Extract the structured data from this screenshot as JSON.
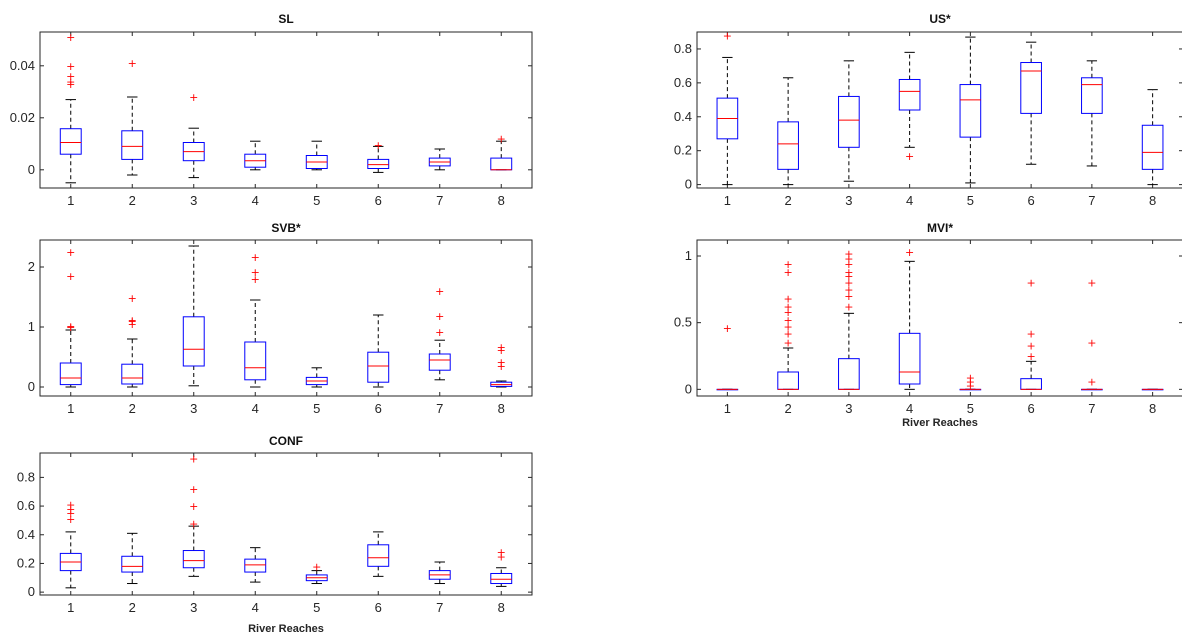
{
  "chart_data": [
    {
      "type": "boxplot",
      "title": "SL",
      "xlabel": "",
      "categories": [
        "1",
        "2",
        "3",
        "4",
        "5",
        "6",
        "7",
        "8"
      ],
      "ylim": [
        -0.007,
        0.053
      ],
      "yticks": [
        0,
        0.02,
        0.04
      ],
      "ytick_labels": [
        "0",
        "0.02",
        "0.04"
      ],
      "boxes": [
        {
          "q1": 0.006,
          "median": 0.0105,
          "q3": 0.0158,
          "whisker_low": -0.005,
          "whisker_high": 0.027,
          "outliers": [
            0.033,
            0.034,
            0.036,
            0.04,
            0.051
          ]
        },
        {
          "q1": 0.004,
          "median": 0.009,
          "q3": 0.015,
          "whisker_low": -0.002,
          "whisker_high": 0.028,
          "outliers": [
            0.041
          ]
        },
        {
          "q1": 0.0035,
          "median": 0.007,
          "q3": 0.0105,
          "whisker_low": -0.003,
          "whisker_high": 0.016,
          "outliers": [
            0.028
          ]
        },
        {
          "q1": 0.001,
          "median": 0.0035,
          "q3": 0.006,
          "whisker_low": 0.0,
          "whisker_high": 0.011,
          "outliers": []
        },
        {
          "q1": 0.0005,
          "median": 0.003,
          "q3": 0.0055,
          "whisker_low": 0.0,
          "whisker_high": 0.011,
          "outliers": []
        },
        {
          "q1": 0.0005,
          "median": 0.002,
          "q3": 0.004,
          "whisker_low": -0.001,
          "whisker_high": 0.009,
          "outliers": [
            0.0095
          ]
        },
        {
          "q1": 0.0015,
          "median": 0.003,
          "q3": 0.0045,
          "whisker_low": 0.0,
          "whisker_high": 0.008,
          "outliers": []
        },
        {
          "q1": 0.0,
          "median": 0.0,
          "q3": 0.0045,
          "whisker_low": 0.0,
          "whisker_high": 0.011,
          "outliers": [
            0.012
          ]
        }
      ]
    },
    {
      "type": "boxplot",
      "title": "US*",
      "xlabel": "",
      "categories": [
        "1",
        "2",
        "3",
        "4",
        "5",
        "6",
        "7",
        "8"
      ],
      "ylim": [
        -0.02,
        0.9
      ],
      "yticks": [
        0,
        0.2,
        0.4,
        0.6,
        0.8
      ],
      "ytick_labels": [
        "0",
        "0.2",
        "0.4",
        "0.6",
        "0.8"
      ],
      "boxes": [
        {
          "q1": 0.27,
          "median": 0.39,
          "q3": 0.51,
          "whisker_low": 0.0,
          "whisker_high": 0.75,
          "outliers": [
            0.88
          ]
        },
        {
          "q1": 0.09,
          "median": 0.24,
          "q3": 0.37,
          "whisker_low": 0.0,
          "whisker_high": 0.63,
          "outliers": []
        },
        {
          "q1": 0.22,
          "median": 0.38,
          "q3": 0.52,
          "whisker_low": 0.02,
          "whisker_high": 0.73,
          "outliers": []
        },
        {
          "q1": 0.44,
          "median": 0.55,
          "q3": 0.62,
          "whisker_low": 0.22,
          "whisker_high": 0.78,
          "outliers": [
            0.17
          ]
        },
        {
          "q1": 0.28,
          "median": 0.5,
          "q3": 0.59,
          "whisker_low": 0.01,
          "whisker_high": 0.87,
          "outliers": []
        },
        {
          "q1": 0.42,
          "median": 0.67,
          "q3": 0.72,
          "whisker_low": 0.12,
          "whisker_high": 0.84,
          "outliers": []
        },
        {
          "q1": 0.42,
          "median": 0.59,
          "q3": 0.63,
          "whisker_low": 0.11,
          "whisker_high": 0.73,
          "outliers": []
        },
        {
          "q1": 0.09,
          "median": 0.19,
          "q3": 0.35,
          "whisker_low": 0.0,
          "whisker_high": 0.56,
          "outliers": []
        }
      ]
    },
    {
      "type": "boxplot",
      "title": "SVB*",
      "xlabel": "",
      "categories": [
        "1",
        "2",
        "3",
        "4",
        "5",
        "6",
        "7",
        "8"
      ],
      "ylim": [
        -0.15,
        2.45
      ],
      "yticks": [
        0,
        1,
        2
      ],
      "ytick_labels": [
        "0",
        "1",
        "2"
      ],
      "boxes": [
        {
          "q1": 0.04,
          "median": 0.15,
          "q3": 0.4,
          "whisker_low": 0.0,
          "whisker_high": 0.95,
          "outliers": [
            1.0,
            1.02,
            1.85,
            2.25
          ]
        },
        {
          "q1": 0.05,
          "median": 0.15,
          "q3": 0.38,
          "whisker_low": 0.0,
          "whisker_high": 0.8,
          "outliers": [
            1.05,
            1.1,
            1.12,
            1.48
          ]
        },
        {
          "q1": 0.35,
          "median": 0.63,
          "q3": 1.17,
          "whisker_low": 0.02,
          "whisker_high": 2.35,
          "outliers": []
        },
        {
          "q1": 0.12,
          "median": 0.32,
          "q3": 0.75,
          "whisker_low": 0.0,
          "whisker_high": 1.45,
          "outliers": [
            1.8,
            1.92,
            2.17
          ]
        },
        {
          "q1": 0.04,
          "median": 0.1,
          "q3": 0.16,
          "whisker_low": 0.0,
          "whisker_high": 0.32,
          "outliers": []
        },
        {
          "q1": 0.08,
          "median": 0.35,
          "q3": 0.58,
          "whisker_low": 0.0,
          "whisker_high": 1.2,
          "outliers": []
        },
        {
          "q1": 0.28,
          "median": 0.45,
          "q3": 0.55,
          "whisker_low": 0.12,
          "whisker_high": 0.78,
          "outliers": [
            0.92,
            1.18,
            1.6
          ]
        },
        {
          "q1": 0.01,
          "median": 0.04,
          "q3": 0.08,
          "whisker_low": 0.0,
          "whisker_high": 0.1,
          "outliers": [
            0.35,
            0.42,
            0.62,
            0.67
          ]
        }
      ]
    },
    {
      "type": "boxplot",
      "title": "MVI*",
      "xlabel": "River Reaches",
      "categories": [
        "1",
        "2",
        "3",
        "4",
        "5",
        "6",
        "7",
        "8"
      ],
      "ylim": [
        -0.05,
        1.12
      ],
      "yticks": [
        0,
        0.5,
        1
      ],
      "ytick_labels": [
        "0",
        "0.5",
        "1"
      ],
      "boxes": [
        {
          "q1": 0.0,
          "median": 0.0,
          "q3": 0.0,
          "whisker_low": 0.0,
          "whisker_high": 0.0,
          "outliers": [
            0.46
          ]
        },
        {
          "q1": 0.0,
          "median": 0.0,
          "q3": 0.13,
          "whisker_low": 0.0,
          "whisker_high": 0.31,
          "outliers": [
            0.35,
            0.42,
            0.47,
            0.52,
            0.58,
            0.62,
            0.68,
            0.88,
            0.94
          ]
        },
        {
          "q1": 0.0,
          "median": 0.0,
          "q3": 0.23,
          "whisker_low": 0.0,
          "whisker_high": 0.57,
          "outliers": [
            0.62,
            0.7,
            0.75,
            0.8,
            0.85,
            0.88,
            0.94,
            0.98,
            1.02
          ]
        },
        {
          "q1": 0.04,
          "median": 0.13,
          "q3": 0.42,
          "whisker_low": 0.0,
          "whisker_high": 0.96,
          "outliers": [
            1.03
          ]
        },
        {
          "q1": 0.0,
          "median": 0.0,
          "q3": 0.0,
          "whisker_low": 0.0,
          "whisker_high": 0.0,
          "outliers": [
            0.03,
            0.06,
            0.09
          ]
        },
        {
          "q1": 0.0,
          "median": 0.0,
          "q3": 0.08,
          "whisker_low": 0.0,
          "whisker_high": 0.21,
          "outliers": [
            0.25,
            0.33,
            0.42,
            0.8
          ]
        },
        {
          "q1": 0.0,
          "median": 0.0,
          "q3": 0.0,
          "whisker_low": 0.0,
          "whisker_high": 0.0,
          "outliers": [
            0.06,
            0.35,
            0.8
          ]
        },
        {
          "q1": 0.0,
          "median": 0.0,
          "q3": 0.0,
          "whisker_low": 0.0,
          "whisker_high": 0.0,
          "outliers": []
        }
      ]
    },
    {
      "type": "boxplot",
      "title": "CONF",
      "xlabel": "River Reaches",
      "categories": [
        "1",
        "2",
        "3",
        "4",
        "5",
        "6",
        "7",
        "8"
      ],
      "ylim": [
        -0.02,
        0.97
      ],
      "yticks": [
        0,
        0.2,
        0.4,
        0.6,
        0.8
      ],
      "ytick_labels": [
        "0",
        "0.2",
        "0.4",
        "0.6",
        "0.8"
      ],
      "boxes": [
        {
          "q1": 0.15,
          "median": 0.21,
          "q3": 0.27,
          "whisker_low": 0.03,
          "whisker_high": 0.42,
          "outliers": [
            0.51,
            0.55,
            0.58,
            0.61
          ]
        },
        {
          "q1": 0.14,
          "median": 0.18,
          "q3": 0.25,
          "whisker_low": 0.06,
          "whisker_high": 0.41,
          "outliers": []
        },
        {
          "q1": 0.17,
          "median": 0.22,
          "q3": 0.29,
          "whisker_low": 0.11,
          "whisker_high": 0.46,
          "outliers": [
            0.48,
            0.6,
            0.72,
            0.93
          ]
        },
        {
          "q1": 0.14,
          "median": 0.19,
          "q3": 0.23,
          "whisker_low": 0.07,
          "whisker_high": 0.31,
          "outliers": []
        },
        {
          "q1": 0.08,
          "median": 0.1,
          "q3": 0.12,
          "whisker_low": 0.06,
          "whisker_high": 0.15,
          "outliers": [
            0.18
          ]
        },
        {
          "q1": 0.18,
          "median": 0.24,
          "q3": 0.33,
          "whisker_low": 0.11,
          "whisker_high": 0.42,
          "outliers": []
        },
        {
          "q1": 0.09,
          "median": 0.12,
          "q3": 0.15,
          "whisker_low": 0.06,
          "whisker_high": 0.21,
          "outliers": []
        },
        {
          "q1": 0.06,
          "median": 0.09,
          "q3": 0.13,
          "whisker_low": 0.04,
          "whisker_high": 0.17,
          "outliers": [
            0.25,
            0.28
          ]
        }
      ]
    }
  ],
  "colors": {
    "box": "#0000ff",
    "median": "#ff0000",
    "outlier": "#ff0000",
    "whisker": "#000000",
    "axis": "#262626"
  }
}
